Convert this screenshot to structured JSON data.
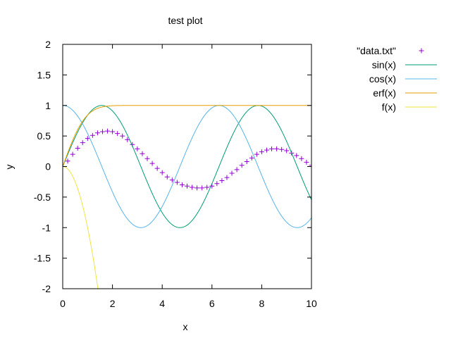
{
  "chart_data": {
    "type": "line",
    "title": "test plot",
    "xlabel": "x",
    "ylabel": "y",
    "xlim": [
      0,
      10
    ],
    "ylim": [
      -2,
      2
    ],
    "x_ticks": [
      0,
      2,
      4,
      6,
      8,
      10
    ],
    "x_tick_labels": [
      "0",
      "2",
      "4",
      "6",
      "8",
      "10"
    ],
    "y_ticks": [
      2,
      1.5,
      1,
      0.5,
      0,
      -0.5,
      -1,
      -1.5,
      -2
    ],
    "y_tick_labels": [
      "2",
      "1.5",
      "1",
      "0.5",
      "0",
      "-0.5",
      "-1",
      "-1.5",
      "-2"
    ],
    "grid": false,
    "legend_position": "outside-right-top",
    "series": [
      {
        "name": "\"data.txt\"",
        "style": "points",
        "marker": "plus",
        "color": "#9400d3",
        "x": [
          0,
          0.2,
          0.4,
          0.6,
          0.8,
          1,
          1.2,
          1.4,
          1.6,
          1.8,
          2,
          2.2,
          2.4,
          2.6,
          2.8,
          3,
          3.2,
          3.4,
          3.6,
          3.8,
          4,
          4.2,
          4.4,
          4.6,
          4.8,
          5,
          5.2,
          5.4,
          5.6,
          5.8,
          6,
          6.2,
          6.4,
          6.6,
          6.8,
          7,
          7.2,
          7.4,
          7.6,
          7.8,
          8,
          8.2,
          8.4,
          8.6,
          8.8,
          9,
          9.2,
          9.4,
          9.6,
          9.8,
          10
        ],
        "y": [
          0,
          0.09,
          0.2,
          0.3,
          0.39,
          0.46,
          0.51,
          0.55,
          0.57,
          0.58,
          0.57,
          0.54,
          0.5,
          0.44,
          0.36,
          0.29,
          0.21,
          0.13,
          0.05,
          -0.03,
          -0.1,
          -0.17,
          -0.22,
          -0.26,
          -0.3,
          -0.32,
          -0.34,
          -0.35,
          -0.35,
          -0.34,
          -0.32,
          -0.28,
          -0.23,
          -0.18,
          -0.11,
          -0.05,
          0.02,
          0.08,
          0.14,
          0.2,
          0.24,
          0.27,
          0.29,
          0.29,
          0.28,
          0.26,
          0.22,
          0.18,
          0.13,
          0.07,
          0.02
        ]
      },
      {
        "name": "sin(x)",
        "style": "line",
        "fn": "sin",
        "color": "#009e73"
      },
      {
        "name": "cos(x)",
        "style": "line",
        "fn": "cos",
        "color": "#56b4e9"
      },
      {
        "name": "erf(x)",
        "style": "line",
        "fn": "erf",
        "color": "#e69f00"
      },
      {
        "name": "f(x)",
        "style": "line",
        "fn": "f",
        "color": "#f0e442"
      }
    ]
  }
}
